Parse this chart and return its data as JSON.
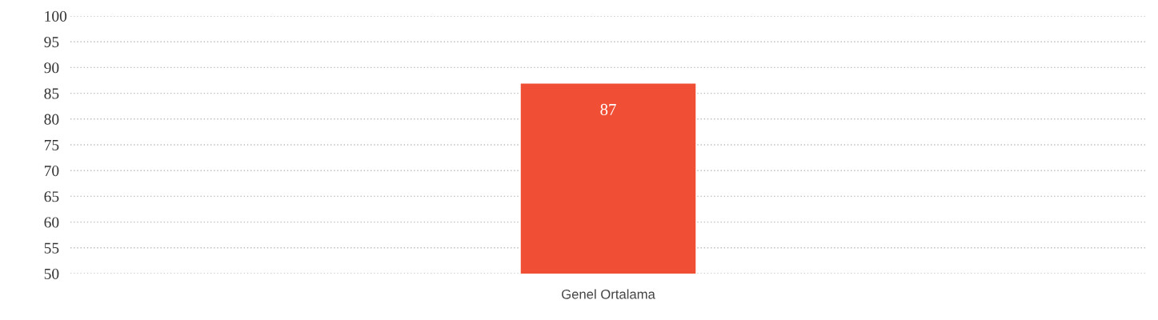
{
  "chart_data": {
    "type": "bar",
    "categories": [
      "Genel Ortalama"
    ],
    "values": [
      87
    ],
    "color": "#f04f36",
    "ylim": [
      50,
      100
    ],
    "yticks": [
      50,
      55,
      60,
      65,
      70,
      75,
      80,
      85,
      90,
      95,
      100
    ],
    "grid": "y",
    "data_labels": true
  }
}
